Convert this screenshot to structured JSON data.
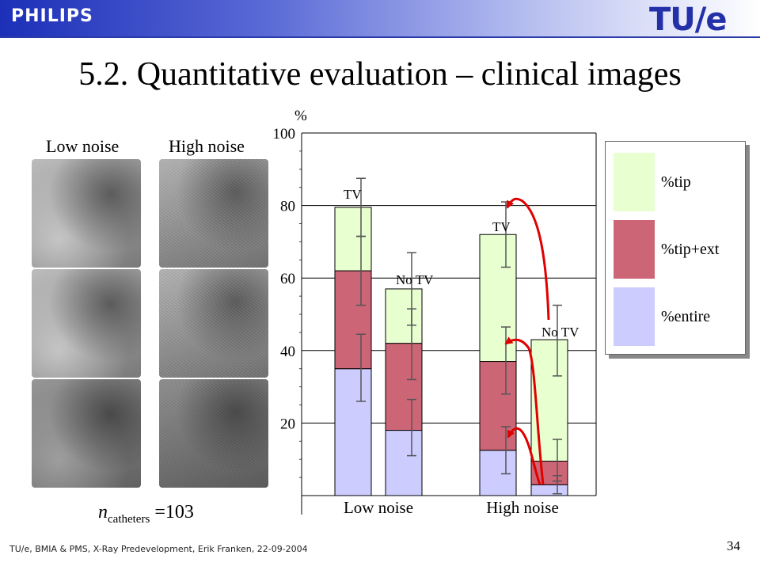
{
  "header": {
    "left_logo": "PHILIPS",
    "right_logo": "TU/e"
  },
  "title": "5.2. Quantitative evaluation – clinical images",
  "images": {
    "col_labels": [
      "Low noise",
      "High noise"
    ],
    "rows": 3,
    "ncatheters": {
      "n": "n",
      "sub": "catheters",
      "value": "=103"
    }
  },
  "colors": {
    "tip": "#e8ffd0",
    "tip_ext": "#cc6677",
    "entire": "#ccccff",
    "arrow": "#e00000",
    "header": "#2330a8"
  },
  "chart_data": {
    "type": "bar",
    "stacked": true,
    "ylabel": "%",
    "ylim": [
      0,
      100
    ],
    "y_ticks": [
      20,
      40,
      60,
      80,
      100
    ],
    "grid": true,
    "groups": [
      "Low noise",
      "High noise"
    ],
    "bars": [
      {
        "group": "Low noise",
        "label": "TV",
        "entire": 35,
        "tip_ext": 62,
        "tip": 79.5,
        "err_entire": [
          26,
          44.5
        ],
        "err_tip_ext": [
          52.5,
          71.5
        ],
        "err_tip": [
          71.5,
          87.5
        ]
      },
      {
        "group": "Low noise",
        "label": "No TV",
        "entire": 18,
        "tip_ext": 42,
        "tip": 57,
        "err_entire": [
          11,
          26.5
        ],
        "err_tip_ext": [
          32,
          51.5
        ],
        "err_tip": [
          47,
          67
        ]
      },
      {
        "group": "High noise",
        "label": "TV",
        "entire": 12.5,
        "tip_ext": 37,
        "tip": 72,
        "err_entire": [
          6,
          19
        ],
        "err_tip_ext": [
          28,
          46.5
        ],
        "err_tip": [
          63,
          81
        ]
      },
      {
        "group": "High noise",
        "label": "No TV",
        "entire": 3,
        "tip_ext": 9.5,
        "tip": 43,
        "err_entire": [
          0.5,
          5.5
        ],
        "err_tip_ext": [
          4,
          15.5
        ],
        "err_tip": [
          33,
          52.5
        ]
      }
    ],
    "legend": {
      "position": "right",
      "entries": [
        "%tip",
        "%tip+ext",
        "%entire"
      ]
    }
  },
  "footer": {
    "text": "TU/e, BMIA  &  PMS, X-Ray Predevelopment, Erik Franken, 22-09-2004",
    "page": "34"
  }
}
